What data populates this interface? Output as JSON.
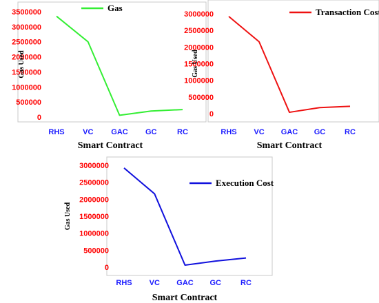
{
  "chart_data": [
    {
      "type": "line",
      "categories": [
        "RHS",
        "VC",
        "GAC",
        "GC",
        "RC"
      ],
      "series": [
        {
          "name": "Gas",
          "values": [
            3350000,
            2500000,
            60000,
            200000,
            250000
          ],
          "color": "#33ee33"
        }
      ],
      "ylabel": "Gas Used",
      "xlabel": "Smart Contract",
      "yticks": [
        "0",
        "500000",
        "1000000",
        "1500000",
        "2000000",
        "2500000",
        "3000000",
        "3500000"
      ],
      "ylim": [
        0,
        3500000
      ],
      "tick_color_y": "#ff0000",
      "tick_color_x": "#1a1aff",
      "legend": "top-center"
    },
    {
      "type": "line",
      "categories": [
        "RHS",
        "VC",
        "GAC",
        "GC",
        "RC"
      ],
      "series": [
        {
          "name": "Transaction Cost",
          "values": [
            2920000,
            2160000,
            40000,
            180000,
            220000
          ],
          "color": "#ee1111"
        }
      ],
      "ylabel": "Gas Used",
      "xlabel": "Smart Contract",
      "yticks": [
        "0",
        "500000",
        "1000000",
        "1500000",
        "2000000",
        "2500000",
        "3000000"
      ],
      "ylim": [
        0,
        3000000
      ],
      "tick_color_y": "#ff0000",
      "tick_color_x": "#1a1aff",
      "legend": "top-right"
    },
    {
      "type": "line",
      "categories": [
        "RHS",
        "VC",
        "GAC",
        "GC",
        "RC"
      ],
      "series": [
        {
          "name": "Execution Cost",
          "values": [
            2920000,
            2160000,
            60000,
            180000,
            270000
          ],
          "color": "#1111dd"
        }
      ],
      "ylabel": "Gas Used",
      "xlabel": "Smart Contract",
      "yticks": [
        "0",
        "500000",
        "1000000",
        "1500000",
        "2000000",
        "2500000",
        "3000000"
      ],
      "ylim": [
        0,
        3000000
      ],
      "tick_color_y": "#ff0000",
      "tick_color_x": "#1a1aff",
      "legend": "top-right"
    }
  ]
}
